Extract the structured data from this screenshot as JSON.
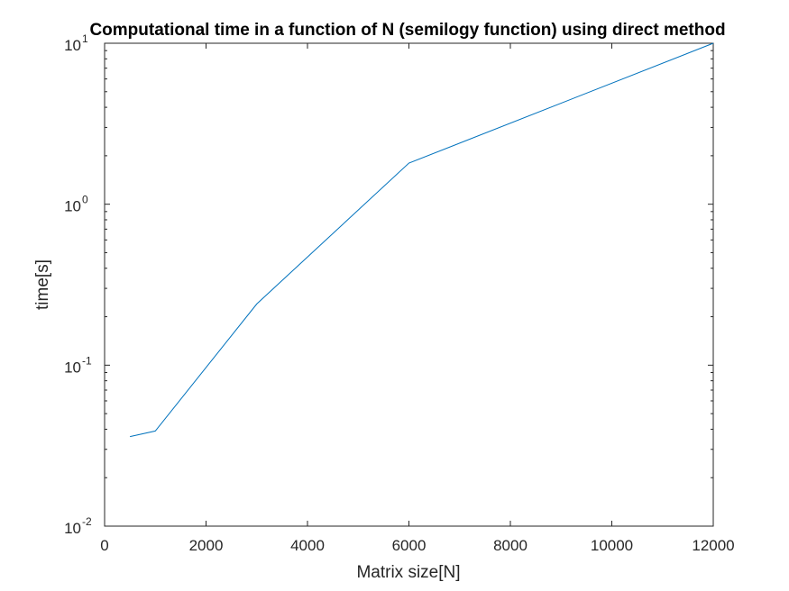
{
  "chart_data": {
    "type": "line",
    "title": "Computational time in a function of N (semilogy function) using direct method",
    "xlabel": "Matrix size[N]",
    "ylabel": "time[s]",
    "xlim": [
      0,
      12000
    ],
    "ylim": [
      0.01,
      10
    ],
    "yscale": "log",
    "grid": false,
    "legend": "none",
    "line_color": "#0072bd",
    "x_ticks": [
      0,
      2000,
      4000,
      6000,
      8000,
      10000,
      12000
    ],
    "x_tick_labels": [
      "0",
      "2000",
      "4000",
      "6000",
      "8000",
      "10000",
      "12000"
    ],
    "y_ticks": [
      0.01,
      0.1,
      1,
      10
    ],
    "y_tick_labels": [
      {
        "base": "10",
        "exp": "-2"
      },
      {
        "base": "10",
        "exp": "-1"
      },
      {
        "base": "10",
        "exp": "0"
      },
      {
        "base": "10",
        "exp": "1"
      }
    ],
    "series": [
      {
        "x": [
          500,
          1000,
          3000,
          6000,
          12000
        ],
        "values": [
          0.036,
          0.039,
          0.24,
          1.8,
          10
        ]
      }
    ]
  }
}
